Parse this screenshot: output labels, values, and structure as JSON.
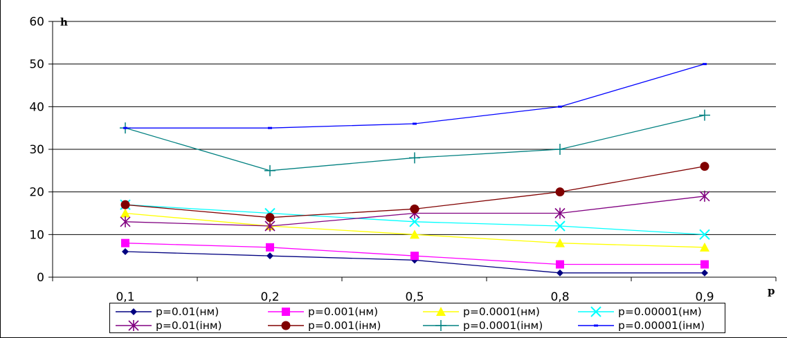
{
  "chart_data": {
    "type": "line",
    "title": "",
    "xlabel": "p",
    "ylabel": "h",
    "categories": [
      "0,1",
      "0,2",
      "0,5",
      "0,8",
      "0,9"
    ],
    "ylim": [
      0,
      60
    ],
    "yticks": [
      0,
      10,
      20,
      30,
      40,
      50,
      60
    ],
    "grid": "horizontal",
    "legend_position": "bottom",
    "series": [
      {
        "name": "p=0.01(нм)",
        "values": [
          6,
          5,
          4,
          1,
          1
        ],
        "color": "#000080",
        "marker": "diamond"
      },
      {
        "name": "p=0.001(нм)",
        "values": [
          8,
          7,
          5,
          3,
          3
        ],
        "color": "#FF00FF",
        "marker": "square"
      },
      {
        "name": "p=0.0001(нм)",
        "values": [
          15,
          12,
          10,
          8,
          7
        ],
        "color": "#FFFF00",
        "marker": "triangle"
      },
      {
        "name": "p=0.00001(нм)",
        "values": [
          17,
          15,
          13,
          12,
          10
        ],
        "color": "#00FFFF",
        "marker": "x"
      },
      {
        "name": "p=0.01(інм)",
        "values": [
          13,
          12,
          15,
          15,
          19
        ],
        "color": "#800080",
        "marker": "star"
      },
      {
        "name": "p=0.001(інм)",
        "values": [
          17,
          14,
          16,
          20,
          26
        ],
        "color": "#800000",
        "marker": "circle"
      },
      {
        "name": "p=0.0001(інм)",
        "values": [
          35,
          25,
          28,
          30,
          38
        ],
        "color": "#008080",
        "marker": "plus"
      },
      {
        "name": "p=0.00001(інм)",
        "values": [
          35,
          35,
          36,
          40,
          50
        ],
        "color": "#0000FF",
        "marker": "dash"
      }
    ]
  }
}
